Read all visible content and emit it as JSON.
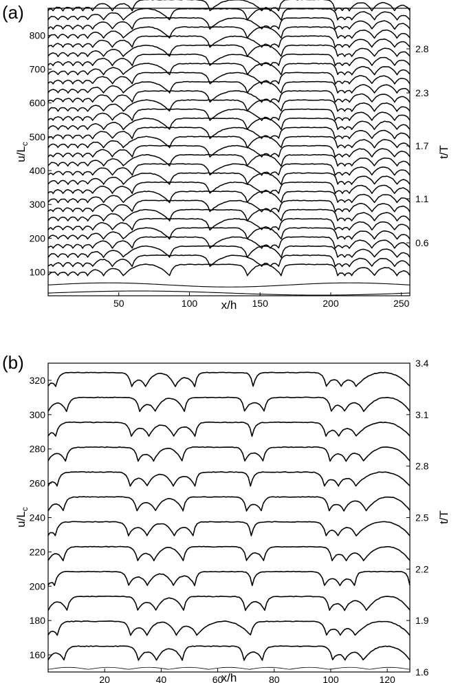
{
  "chart_data": [
    {
      "type": "line",
      "panel_label": "(a)",
      "xlabel": "x/h",
      "ylabel_main": "u/L",
      "ylabel_sub": "c",
      "y2label": "t/T",
      "xlim": [
        0,
        256
      ],
      "ylim": [
        30,
        880
      ],
      "y2lim": [
        0,
        3.26
      ],
      "xticks": [
        "50",
        "100",
        "150",
        "200",
        "250"
      ],
      "yticks": [
        "100",
        "200",
        "300",
        "400",
        "500",
        "600",
        "700",
        "800"
      ],
      "y2ticks": [
        "0.6",
        "1.1",
        "1.7",
        "2.3",
        "2.8"
      ],
      "front_spacing": 27,
      "first_front": 90,
      "bottom_fronts": [
        38,
        62
      ],
      "cell_size_profile": [
        {
          "x": 0,
          "cell": 7
        },
        {
          "x": 25,
          "cell": 7
        },
        {
          "x": 30,
          "cell": 14
        },
        {
          "x": 50,
          "cell": 14
        },
        {
          "x": 57,
          "cell": 55
        },
        {
          "x": 112,
          "cell": 55
        },
        {
          "x": 118,
          "cell": 11
        },
        {
          "x": 130,
          "cell": 11
        },
        {
          "x": 132,
          "cell": 40
        },
        {
          "x": 140,
          "cell": 40
        },
        {
          "x": 142,
          "cell": 6
        },
        {
          "x": 160,
          "cell": 6
        },
        {
          "x": 162,
          "cell": 40
        },
        {
          "x": 178,
          "cell": 40
        },
        {
          "x": 180,
          "cell": 5
        },
        {
          "x": 210,
          "cell": 5
        },
        {
          "x": 212,
          "cell": 16
        },
        {
          "x": 256,
          "cell": 16
        }
      ]
    },
    {
      "type": "line",
      "panel_label": "(b)",
      "xlabel": "x/h",
      "ylabel_main": "u/L",
      "ylabel_sub": "c",
      "y2label": "t/T",
      "xlim": [
        0,
        128
      ],
      "ylim": [
        150,
        330
      ],
      "y2lim": [
        1.6,
        3.4
      ],
      "xticks": [
        "20",
        "40",
        "60",
        "80",
        "100",
        "120"
      ],
      "yticks": [
        "160",
        "180",
        "200",
        "220",
        "240",
        "260",
        "280",
        "300",
        "320"
      ],
      "y2ticks": [
        "1.6",
        "1.9",
        "2.2",
        "2.5",
        "2.8",
        "3.1",
        "3.4"
      ],
      "front_spacing": 14.5,
      "first_front": 157,
      "cell_pattern_a": [
        0,
        6,
        32,
        38,
        48,
        70,
        76,
        100,
        105,
        112,
        128
      ],
      "cell_pattern_b": [
        0,
        3,
        29,
        35,
        45,
        52,
        72,
        98,
        103,
        109,
        128
      ]
    }
  ]
}
